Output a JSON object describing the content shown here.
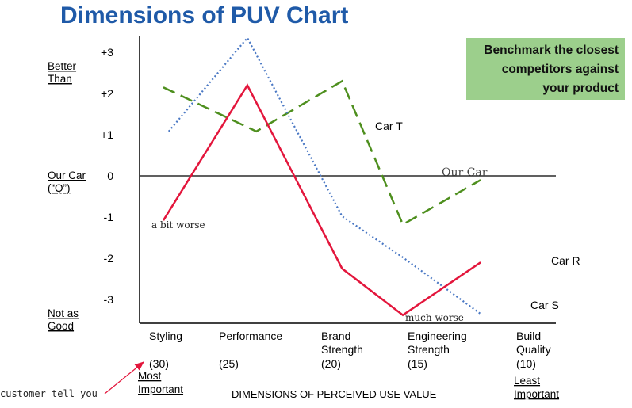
{
  "title": "Dimensions of PUV Chart",
  "callout": {
    "lines": [
      "Benchmark the closest",
      "competitors against",
      "your product"
    ],
    "color": "#9ccf8c"
  },
  "left_labels": {
    "better": [
      "Better",
      "Than"
    ],
    "our_car": [
      "Our Car",
      "(“Q”)"
    ],
    "not_as_good": [
      "Not as",
      "Good"
    ]
  },
  "bottom_left": {
    "most_important": [
      "Most",
      "Important"
    ],
    "annotation": "customer tell you"
  },
  "bottom_right": {
    "least_important": [
      "Least",
      "Important"
    ]
  },
  "chart_data": {
    "type": "line",
    "title": "Dimensions of PUV Chart",
    "xlabel": "DIMENSIONS OF PERCEIVED USE VALUE",
    "ylabel": "",
    "ylim": [
      -3.6,
      3.35
    ],
    "y_ticks": [
      {
        "value": 3,
        "label": "+3"
      },
      {
        "value": 2,
        "label": "+2"
      },
      {
        "value": 1,
        "label": "+1"
      },
      {
        "value": 0,
        "label": "0"
      },
      {
        "value": -1,
        "label": "-1"
      },
      {
        "value": -2,
        "label": "-2"
      },
      {
        "value": -3,
        "label": "-3"
      }
    ],
    "categories": [
      {
        "name": [
          "Styling"
        ],
        "weight": "(30)"
      },
      {
        "name": [
          "Performance"
        ],
        "weight": "(25)"
      },
      {
        "name": [
          "Brand",
          "Strength"
        ],
        "weight": "(20)"
      },
      {
        "name": [
          "Engineering",
          "Strength"
        ],
        "weight": "(15)"
      },
      {
        "name": [
          "Build",
          "Quality"
        ],
        "weight": "(10)"
      }
    ],
    "reference_line": {
      "name": "Our Car",
      "value": 0
    },
    "series": [
      {
        "name": "Car T",
        "color": "#4e8f1e",
        "dash": "dashed",
        "points": [
          [
            0,
            2.15
          ],
          [
            1.04,
            1.08
          ],
          [
            2.0,
            2.3
          ],
          [
            2.68,
            -1.18
          ],
          [
            3.55,
            -0.1
          ]
        ]
      },
      {
        "name": "Car S",
        "color": "#4a78c4",
        "dash": "dotted",
        "points": [
          [
            0.06,
            1.08
          ],
          [
            0.94,
            3.35
          ],
          [
            2.0,
            -0.98
          ],
          [
            2.68,
            -1.98
          ],
          [
            3.55,
            -3.35
          ]
        ]
      },
      {
        "name": "Car R",
        "color": "#e3163c",
        "dash": "solid",
        "points": [
          [
            0.0,
            -1.08
          ],
          [
            0.94,
            2.2
          ],
          [
            2.0,
            -2.25
          ],
          [
            2.68,
            -3.38
          ],
          [
            3.55,
            -2.1
          ]
        ]
      }
    ],
    "annotations": [
      "a bit worse",
      "much worse"
    ],
    "grid": false
  }
}
